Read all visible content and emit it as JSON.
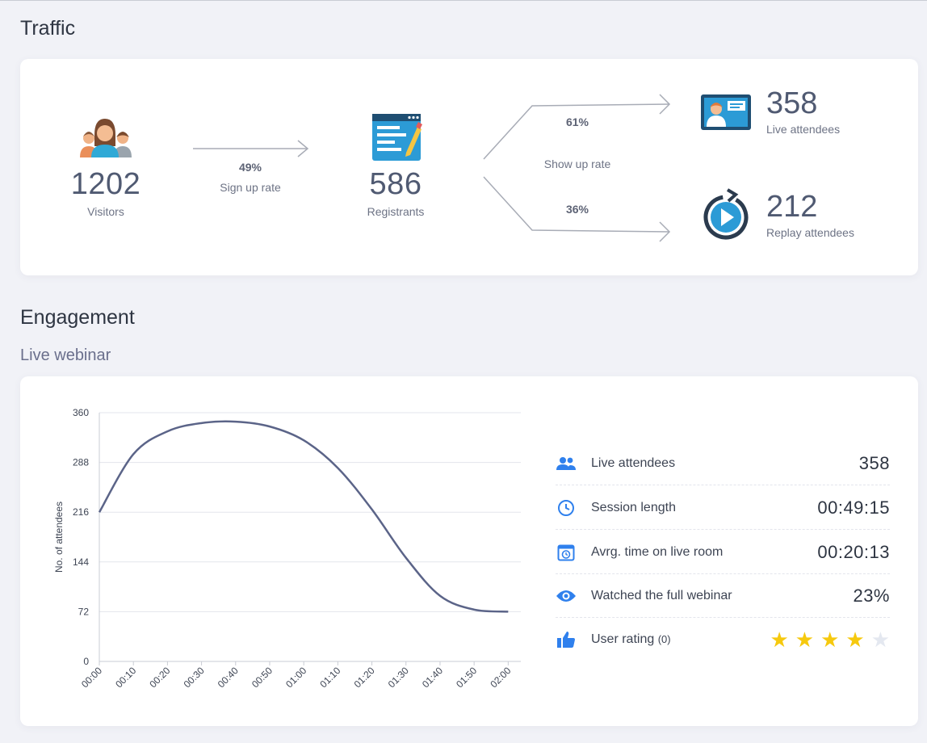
{
  "traffic": {
    "title": "Traffic",
    "visitors": {
      "value": "1202",
      "label": "Visitors"
    },
    "signup": {
      "pct": "49%",
      "label": "Sign up rate"
    },
    "registrants": {
      "value": "586",
      "label": "Registrants"
    },
    "showup": {
      "live_pct": "61%",
      "label": "Show up rate",
      "replay_pct": "36%"
    },
    "live": {
      "value": "358",
      "label": "Live attendees"
    },
    "replay": {
      "value": "212",
      "label": "Replay attendees"
    }
  },
  "engagement": {
    "title": "Engagement",
    "subtitle": "Live webinar",
    "metrics": [
      {
        "icon": "people-icon",
        "label": "Live attendees",
        "value": "358"
      },
      {
        "icon": "clock-icon",
        "label": "Session length",
        "value": "00:49:15"
      },
      {
        "icon": "calendar-clock-icon",
        "label": "Avrg. time on live room",
        "value": "00:20:13"
      },
      {
        "icon": "eye-icon",
        "label": "Watched the full webinar",
        "value": "23%"
      },
      {
        "icon": "thumbs-up-icon",
        "label": "User rating",
        "count": "(0)",
        "rating": 4,
        "max": 5
      }
    ]
  },
  "colors": {
    "accent": "#2f80ed",
    "line": "#5b6488",
    "star": "#f6c90e"
  },
  "chart_data": {
    "type": "line",
    "title": "",
    "xlabel": "",
    "ylabel": "No. of attendees",
    "ylim": [
      0,
      360
    ],
    "yticks": [
      "0",
      "72",
      "144",
      "216",
      "288",
      "360"
    ],
    "x": [
      "00:00",
      "00:10",
      "00:20",
      "00:30",
      "00:40",
      "00:50",
      "01:00",
      "01:10",
      "01:20",
      "01:30",
      "01:40",
      "01:50",
      "02:00"
    ],
    "series": [
      {
        "values": [
          216,
          300,
          333,
          345,
          347,
          340,
          320,
          280,
          220,
          150,
          95,
          75,
          72
        ]
      }
    ],
    "grid": true
  }
}
